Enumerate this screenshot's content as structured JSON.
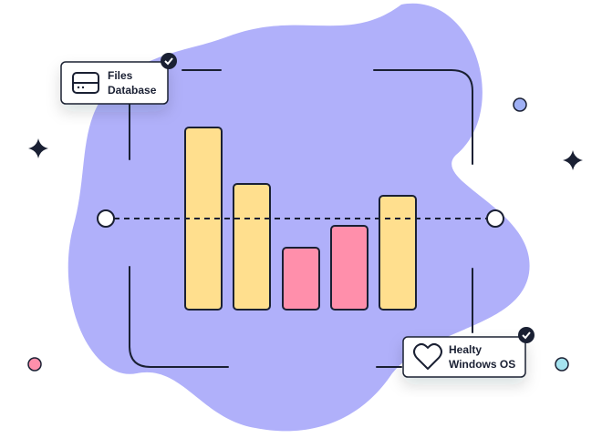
{
  "cards": [
    {
      "lines": [
        "Files",
        "Database"
      ]
    },
    {
      "lines": [
        "Healty",
        "Windows OS"
      ]
    }
  ]
}
